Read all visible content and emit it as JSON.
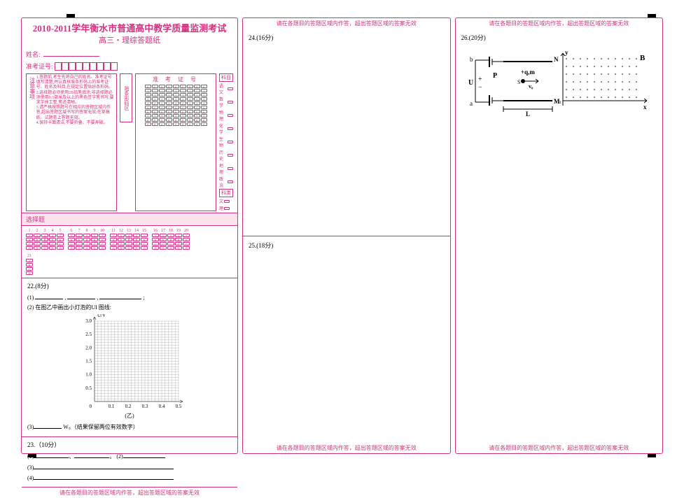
{
  "colors": {
    "pink": "#d4317e",
    "pink_bg": "#fce4ef",
    "black": "#000000",
    "grid": "#888888"
  },
  "title": "2010-2011学年衡水市普通高中教学质量监测考试",
  "subtitle": "高三・理综答题纸",
  "name_label": "姓名:",
  "ticket_label": "准考证号:",
  "ticket_box_count": 9,
  "notice": {
    "label": "注意事项",
    "lines": [
      "1.答题前,考生先将自己的姓名、准考证号填写清楚,并认真核准条形码上的准考证号、姓名及科目,在规定位置贴好条形码。",
      "2.选择题必须使用2B铅笔填涂;非选择题必须使用0.5毫米及以上的黑色签字笔书写,要求字体工整,笔迹清晰。",
      "3.请严格按照题号在相应的答题区域内作答,超出答题区域书写的答案无效;在草稿纸、试题卷上答题无效。",
      "4.保持卡面清洁,不要折叠、不要弄破。"
    ]
  },
  "barcode_label": "贴条形码区",
  "bubble_title": "准 考 证 号",
  "bubble_cols": 9,
  "bubble_digits": [
    "0",
    "1",
    "2",
    "3",
    "4",
    "5",
    "6",
    "7",
    "8",
    "9"
  ],
  "subjects": {
    "head1": "科目",
    "items": [
      "语文",
      "数学",
      "物理",
      "化学",
      "生物",
      "历史",
      "地理",
      "政治"
    ],
    "head2": "科类",
    "types": [
      "文",
      "理"
    ]
  },
  "choice_label": "选择题",
  "choice": {
    "groups": [
      {
        "nums": [
          "1",
          "2",
          "3",
          "4",
          "5"
        ],
        "opts": [
          "A",
          "B",
          "C",
          "D"
        ]
      },
      {
        "nums": [
          "6",
          "7",
          "8",
          "9",
          "10"
        ],
        "opts": [
          "A",
          "B",
          "C",
          "D"
        ]
      },
      {
        "nums": [
          "11",
          "12",
          "13",
          "14",
          "15"
        ],
        "opts": [
          "A",
          "B",
          "C",
          "D"
        ]
      },
      {
        "nums": [
          "16",
          "17",
          "18",
          "19",
          "20"
        ],
        "opts": [
          "A",
          "B",
          "C",
          "D"
        ]
      }
    ],
    "extra": {
      "nums": [
        "21"
      ],
      "opts": [
        "A",
        "B",
        "C",
        "D"
      ]
    }
  },
  "q22": {
    "head": "22.(8分)",
    "line1": "(1)",
    "line2": "(2) 在图乙中画出小灯泡的UI 图线:",
    "chart": {
      "ylabel": "U/V",
      "xlabel": "I/A",
      "xmax": 0.5,
      "ymax": 3.0,
      "xticks": [
        "0.1",
        "0.2",
        "0.3",
        "0.4",
        "0.5"
      ],
      "yticks": [
        "0.5",
        "1.0",
        "1.5",
        "2.0",
        "2.5",
        "3.0"
      ],
      "caption": "(乙)"
    },
    "line3_a": "(3)",
    "line3_b": "W。（结果保留两位有效数字）"
  },
  "q23": {
    "head": "23.（10分）",
    "l1a": "(1)",
    "l1b": "、",
    "l1c": "。 (2)",
    "l3": "(3)",
    "l4": "(4)"
  },
  "q24": {
    "head": "24.(16分)"
  },
  "q25": {
    "head": "25.(18分)"
  },
  "q26": {
    "head": "26.(20分)",
    "labels": {
      "b": "b",
      "a": "a",
      "U": "U",
      "P": "P",
      "N": "N",
      "M": "M",
      "B": "B",
      "qm": "+q,m",
      "S": "S",
      "v0": "v₀",
      "L": "L",
      "y": "y",
      "x": "x",
      "u": "u"
    }
  },
  "warn": "请在各题目的答题区域内作答，超出答题区域的答案无效"
}
